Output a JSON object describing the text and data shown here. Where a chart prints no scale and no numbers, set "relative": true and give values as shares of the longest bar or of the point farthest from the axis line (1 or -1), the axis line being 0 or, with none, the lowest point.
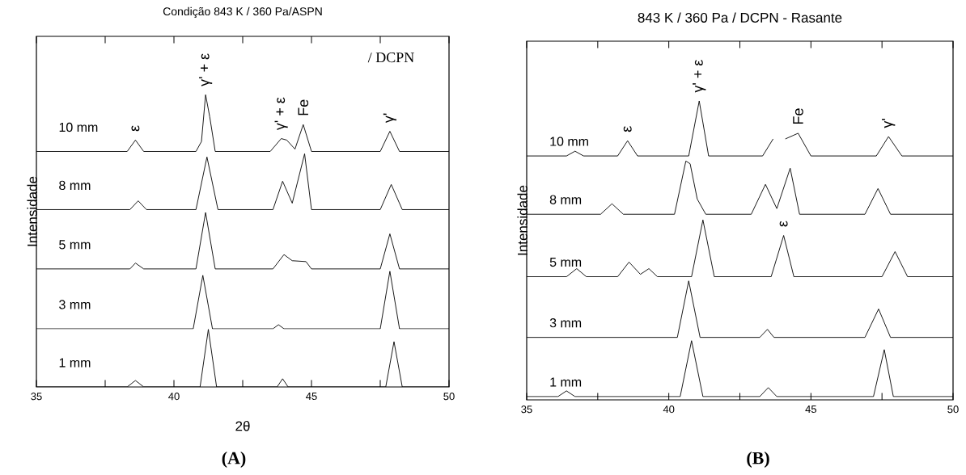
{
  "chart_data": [
    {
      "type": "line",
      "title": "Condição 843 K / 360 Pa/ASPN",
      "xlabel": "2θ",
      "ylabel": "Intensidade",
      "relative": true,
      "xlim": [
        35,
        50
      ],
      "xticks": [
        35,
        {
          "value": 37.5,
          "label": null
        },
        40,
        {
          "value": 42.5,
          "label": null
        },
        45,
        {
          "value": 47.5,
          "label": null
        },
        50
      ],
      "series": [
        {
          "name": "10 mm",
          "color": "#000000",
          "x": [
            35,
            38.3,
            38.6,
            38.9,
            40.8,
            41.0,
            41.15,
            41.3,
            41.5,
            43.5,
            43.9,
            44.1,
            44.4,
            44.7,
            45.0,
            47.5,
            47.85,
            48.2,
            50
          ],
          "values": [
            0.806,
            0.806,
            0.845,
            0.806,
            0.806,
            0.84,
            1.0,
            0.925,
            0.806,
            0.806,
            0.85,
            0.845,
            0.814,
            0.898,
            0.806,
            0.806,
            0.875,
            0.806,
            0.806
          ]
        },
        {
          "name": "8 mm",
          "color": "#000000",
          "x": [
            35,
            38.4,
            38.7,
            39.0,
            40.8,
            41.2,
            41.6,
            43.6,
            43.95,
            44.3,
            44.75,
            45.0,
            47.5,
            47.9,
            48.3,
            50
          ],
          "values": [
            0.607,
            0.607,
            0.637,
            0.607,
            0.607,
            0.787,
            0.607,
            0.607,
            0.704,
            0.629,
            0.798,
            0.607,
            0.607,
            0.693,
            0.607,
            0.607
          ]
        },
        {
          "name": "5 mm",
          "color": "#000000",
          "x": [
            35,
            38.4,
            38.6,
            38.9,
            40.8,
            41.15,
            41.5,
            43.6,
            44.0,
            44.3,
            44.8,
            45.0,
            47.5,
            47.85,
            48.2,
            50
          ],
          "values": [
            0.404,
            0.404,
            0.424,
            0.404,
            0.404,
            0.597,
            0.404,
            0.404,
            0.453,
            0.432,
            0.429,
            0.404,
            0.404,
            0.524,
            0.404,
            0.404
          ]
        },
        {
          "name": "3 mm",
          "color": "#000000",
          "x": [
            35,
            40.7,
            41.05,
            41.4,
            43.6,
            43.8,
            44.0,
            47.5,
            47.85,
            48.2,
            50
          ],
          "values": [
            0.199,
            0.199,
            0.382,
            0.199,
            0.199,
            0.213,
            0.199,
            0.199,
            0.396,
            0.199,
            0.199
          ]
        },
        {
          "name": "1 mm",
          "color": "#000000",
          "x": [
            35,
            38.3,
            38.6,
            38.9,
            40.95,
            41.25,
            41.55,
            43.75,
            43.95,
            44.15,
            47.7,
            48.0,
            48.3,
            50
          ],
          "values": [
            0,
            0,
            0.022,
            0,
            0,
            0.197,
            0,
            0,
            0.028,
            0,
            0,
            0.155,
            0,
            0
          ]
        }
      ],
      "annotations": [
        {
          "text": "ε",
          "x": 38.6,
          "y": 0.845
        },
        {
          "text": "γ' + ε",
          "x": 41.15,
          "y": 1.0
        },
        {
          "text": "γ' + ε",
          "x": 43.9,
          "y": 0.85
        },
        {
          "text": "Fe",
          "x": 44.7,
          "y": 0.898
        },
        {
          "text": "γ'",
          "x": 47.85,
          "y": 0.875
        },
        "/ DCPN",
        "(A)"
      ]
    },
    {
      "type": "line",
      "title": "843 K / 360 Pa / DCPN - Rasante",
      "ylabel": "Intensidade",
      "relative": true,
      "xlim": [
        35,
        50
      ],
      "xticks": [
        35,
        {
          "value": 37.5,
          "label": null
        },
        40,
        {
          "value": 42.5,
          "label": null
        },
        45,
        {
          "value": 47.5,
          "label": null
        },
        50
      ],
      "series": [
        {
          "name": "10 mm",
          "color": "#000000",
          "x": [
            35,
            36.4,
            36.7,
            37.0,
            38.2,
            38.55,
            38.9,
            40.7,
            41.07,
            41.4,
            43.3,
            43.67,
            43.9,
            44.1,
            44.55,
            45.0,
            47.3,
            47.73,
            48.2,
            50
          ],
          "values": [
            0.816,
            0.816,
            0.832,
            0.816,
            0.816,
            0.867,
            0.816,
            0.816,
            1.0,
            0.816,
            0.816,
            0.873,
            null,
            0.873,
            0.892,
            0.816,
            0.816,
            0.881,
            0.816,
            0.816
          ]
        },
        {
          "name": "8 mm",
          "color": "#000000",
          "x": [
            35,
            37.6,
            38.0,
            38.4,
            40.2,
            40.6,
            40.75,
            41.0,
            41.3,
            42.9,
            43.4,
            43.8,
            44.27,
            44.6,
            46.9,
            47.36,
            47.8,
            50
          ],
          "values": [
            0.621,
            0.621,
            0.656,
            0.621,
            0.621,
            0.799,
            0.79,
            0.672,
            0.621,
            0.621,
            0.721,
            0.64,
            0.775,
            0.621,
            0.621,
            0.707,
            0.621,
            0.621
          ]
        },
        {
          "name": "5 mm",
          "color": "#000000",
          "x": [
            35,
            36.4,
            36.76,
            37.1,
            38.2,
            38.6,
            39.0,
            39.3,
            39.6,
            40.8,
            41.2,
            41.6,
            43.6,
            44.04,
            44.4,
            47.5,
            47.96,
            48.4,
            50
          ],
          "values": [
            0.412,
            0.412,
            0.439,
            0.412,
            0.412,
            0.461,
            0.42,
            0.439,
            0.412,
            0.412,
            0.602,
            0.412,
            0.412,
            0.55,
            0.412,
            0.412,
            0.496,
            0.412,
            0.412
          ]
        },
        {
          "name": "3 mm",
          "color": "#000000",
          "x": [
            35,
            40.3,
            40.7,
            41.1,
            43.2,
            43.47,
            43.7,
            46.9,
            47.38,
            47.8,
            50
          ],
          "values": [
            0.209,
            0.209,
            0.398,
            0.209,
            0.209,
            0.236,
            0.209,
            0.209,
            0.304,
            0.209,
            0.209
          ]
        },
        {
          "name": "1 mm",
          "color": "#000000",
          "x": [
            35,
            36.1,
            36.4,
            36.7,
            40.4,
            40.8,
            41.2,
            43.2,
            43.5,
            43.8,
            47.2,
            47.58,
            47.9,
            50
          ],
          "values": [
            0.011,
            0.011,
            0.03,
            0.011,
            0.011,
            0.198,
            0.011,
            0.011,
            0.041,
            0.011,
            0.011,
            0.168,
            0.011,
            0.011
          ]
        }
      ],
      "annotations": [
        {
          "text": "ε",
          "x": 38.55,
          "y": 0.867
        },
        {
          "text": "γ' + ε",
          "x": 41.07,
          "y": 1.0
        },
        {
          "text": "Fe",
          "x": 44.55,
          "y": 0.892
        },
        {
          "text": "γ'",
          "x": 47.73,
          "y": 0.881
        },
        {
          "text": "ε",
          "x": 44.04,
          "y": 0.55
        },
        "(B)"
      ]
    }
  ]
}
